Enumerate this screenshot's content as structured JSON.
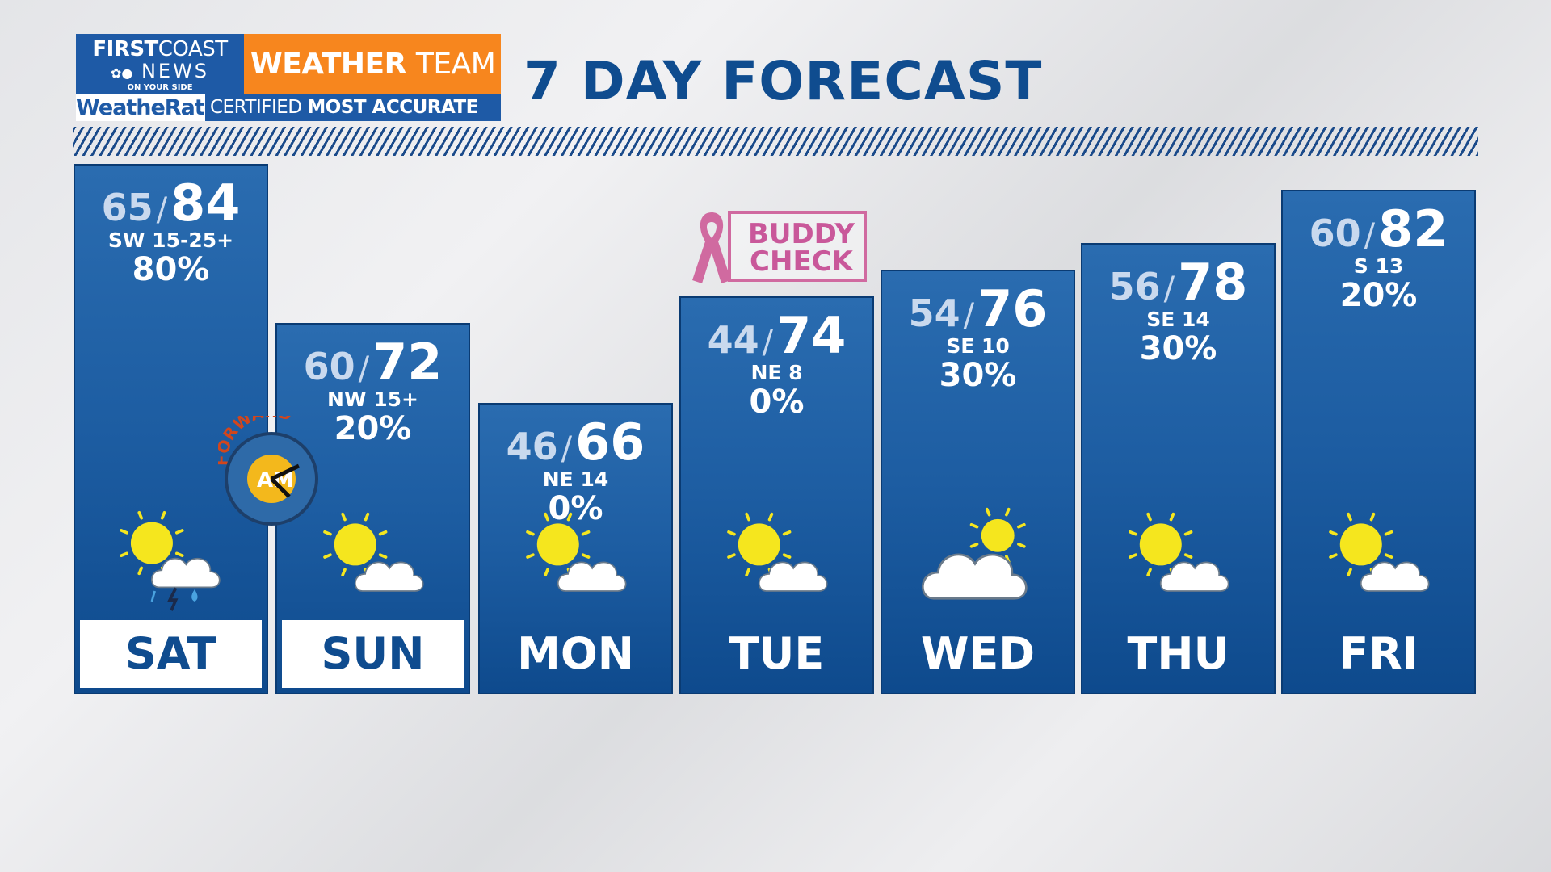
{
  "branding": {
    "first": "FIRST",
    "coast": "COAST",
    "news": "NEWS",
    "tagline": "ON YOUR SIDE",
    "weather": "WEATHER",
    "team": "TEAM",
    "weatherate": "WeatheRate",
    "certified": "CERTIFIED",
    "most_accurate": "MOST ACCURATE"
  },
  "title": "7 DAY FORECAST",
  "colors": {
    "panel": "#1d5da2",
    "title": "#0f4c8f",
    "accent_orange": "#f7861e",
    "pink": "#c9589a"
  },
  "buddy_check": {
    "line1": "BUDDY",
    "line2": "CHECK"
  },
  "forward_badge": {
    "text": "FORWARD",
    "am": "AM"
  },
  "days": [
    {
      "day": "SAT",
      "low": "65",
      "high": "84",
      "wind": "SW 15-25+",
      "pop": "80%",
      "icon": "partly-sunny-thunderstorm-icon",
      "highlighted": true
    },
    {
      "day": "SUN",
      "low": "60",
      "high": "72",
      "wind": "NW 15+",
      "pop": "20%",
      "icon": "partly-cloudy-icon",
      "highlighted": true
    },
    {
      "day": "MON",
      "low": "46",
      "high": "66",
      "wind": "NE 14",
      "pop": "0%",
      "icon": "partly-cloudy-icon",
      "highlighted": false
    },
    {
      "day": "TUE",
      "low": "44",
      "high": "74",
      "wind": "NE 8",
      "pop": "0%",
      "icon": "partly-cloudy-icon",
      "highlighted": false
    },
    {
      "day": "WED",
      "low": "54",
      "high": "76",
      "wind": "SE 10",
      "pop": "30%",
      "icon": "mostly-cloudy-icon",
      "highlighted": false
    },
    {
      "day": "THU",
      "low": "56",
      "high": "78",
      "wind": "SE 14",
      "pop": "30%",
      "icon": "partly-cloudy-icon",
      "highlighted": false
    },
    {
      "day": "FRI",
      "low": "60",
      "high": "82",
      "wind": "S 13",
      "pop": "20%",
      "icon": "partly-cloudy-icon",
      "highlighted": false
    }
  ]
}
